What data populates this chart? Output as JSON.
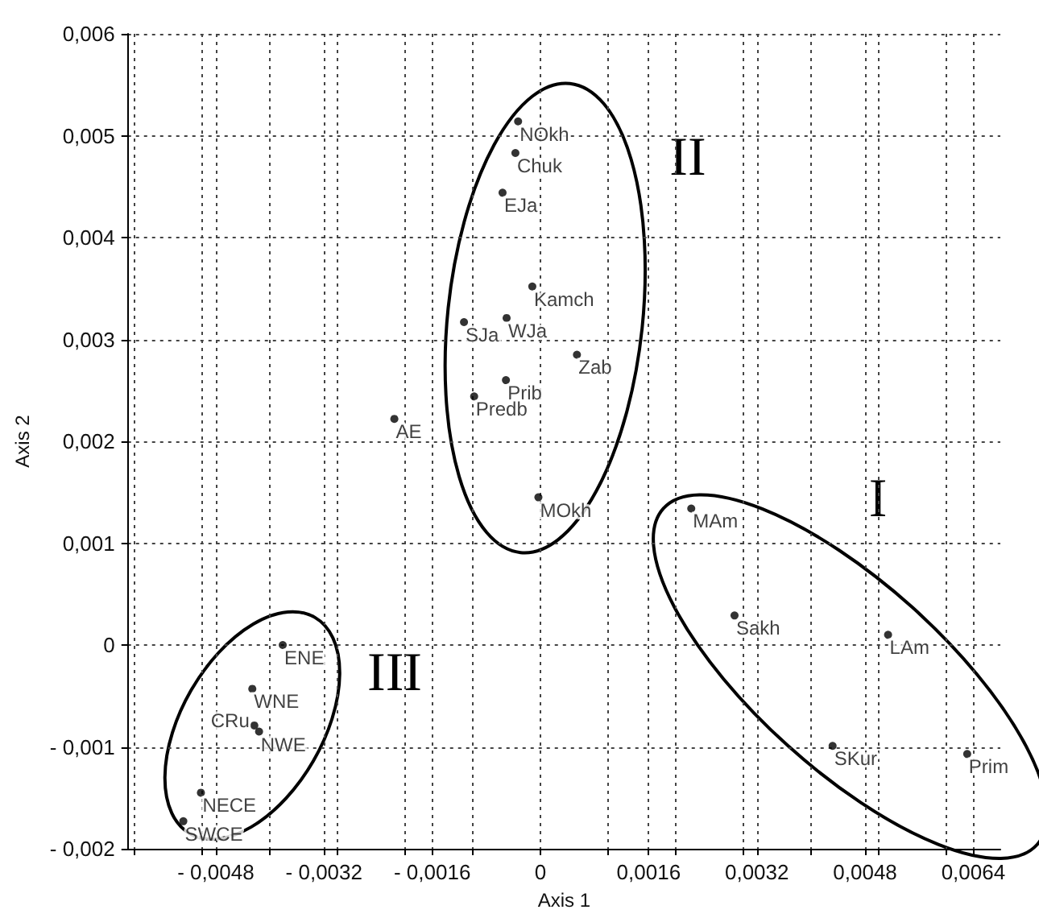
{
  "chart_data": {
    "type": "scatter",
    "xlabel": "Axis 1",
    "ylabel": "Axis 2",
    "x": [
      -0.00033,
      -0.00037,
      -0.00056,
      -0.00012,
      -0.00113,
      -0.0005,
      0.00054,
      -0.00051,
      -0.00098,
      -0.00216,
      -3e-05,
      0.00223,
      0.00287,
      0.00514,
      0.00432,
      0.00631,
      -0.00381,
      -0.00426,
      -0.00423,
      -0.00416,
      -0.00502,
      -0.00528
    ],
    "values": [
      0.00514,
      0.00483,
      0.00444,
      0.00352,
      0.00317,
      0.00321,
      0.00285,
      0.0026,
      0.00244,
      0.00222,
      0.00145,
      0.00134,
      0.00029,
      0.0001,
      -0.00099,
      -0.00107,
      0,
      -0.00043,
      -0.00079,
      -0.00085,
      -0.00145,
      -0.00173
    ],
    "value_labels": [
      "NOkh",
      "Chuk",
      "EJa",
      "Kamch",
      "SJa",
      "WJa",
      "Zab",
      "Prib",
      "Predb",
      "AE",
      "MOkh",
      "MAm",
      "Sakh",
      "LAm",
      "SKur",
      "Prim",
      "ENE",
      "WNE",
      "CRu",
      "NWE",
      "NECE",
      "SWCE"
    ],
    "color": "#000000",
    "marker": "circle",
    "grid": true,
    "xlim": [
      -0.0061,
      0.0068
    ],
    "xticks": [
      {
        "value": -0.006,
        "label": null
      },
      {
        "value": -0.005,
        "label": null
      },
      {
        "value": -0.0048,
        "label": "- 0,0048"
      },
      {
        "value": -0.004,
        "label": null
      },
      {
        "value": -0.0032,
        "label": "- 0,0032"
      },
      {
        "value": -0.003,
        "label": null
      },
      {
        "value": -0.002,
        "label": null
      },
      {
        "value": -0.0016,
        "label": "- 0,0016"
      },
      {
        "value": -0.001,
        "label": null
      },
      0,
      {
        "value": 0.001,
        "label": null
      },
      {
        "value": 0.0016,
        "label": "0,0016"
      },
      {
        "value": 0.002,
        "label": null
      },
      {
        "value": 0.003,
        "label": null
      },
      {
        "value": 0.0032,
        "label": "0,0032"
      },
      {
        "value": 0.004,
        "label": null
      },
      {
        "value": 0.0048,
        "label": "0,0048"
      },
      {
        "value": 0.005,
        "label": null
      },
      {
        "value": 0.006,
        "label": null
      },
      {
        "value": 0.0064,
        "label": "0,0064"
      }
    ],
    "ylim": [
      -0.002,
      0.006
    ],
    "yticks": [
      {
        "value": -0.002,
        "label": "- 0,002"
      },
      {
        "value": -0.001,
        "label": "- 0,001"
      },
      0,
      {
        "value": 0.001,
        "label": "0,001"
      },
      {
        "value": 0.002,
        "label": "0,002"
      },
      {
        "value": 0.003,
        "label": "0,003"
      },
      {
        "value": 0.004,
        "label": "0,004"
      },
      {
        "value": 0.005,
        "label": "0,005"
      },
      {
        "value": 0.006,
        "label": "0,006"
      }
    ],
    "annotations": [
      "I",
      "II",
      "III"
    ]
  }
}
